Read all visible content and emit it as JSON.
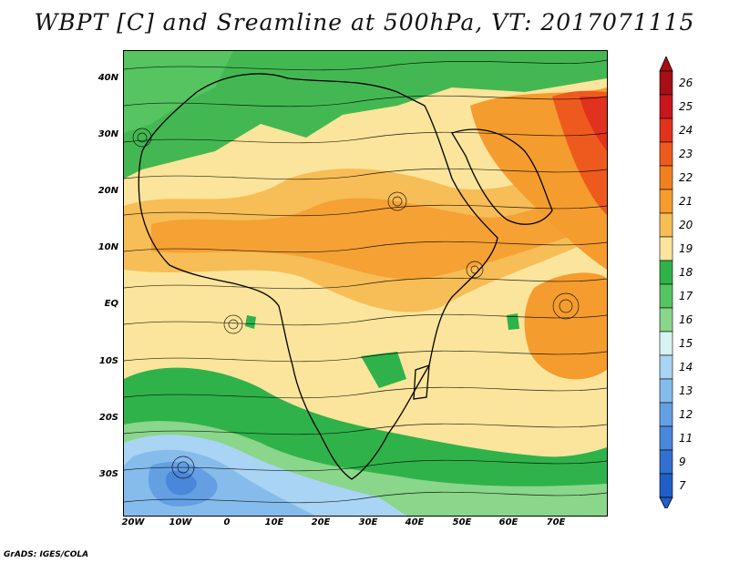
{
  "title": "WBPT [C] and Sreamline at 500hPa, VT: 2017071115",
  "footer": "GrADS: IGES/COLA",
  "map": {
    "lat_labels": [
      "40N",
      "30N",
      "20N",
      "10N",
      "EQ",
      "10S",
      "20S",
      "30S"
    ],
    "lon_labels": [
      "20W",
      "10W",
      "0",
      "10E",
      "20E",
      "30E",
      "40E",
      "50E",
      "60E",
      "70E"
    ]
  },
  "colorbar": {
    "labels": [
      "26",
      "25",
      "24",
      "23",
      "22",
      "21",
      "20",
      "19",
      "18",
      "17",
      "16",
      "15",
      "14",
      "13",
      "12",
      "11",
      "9",
      "7"
    ],
    "colors": {
      "26": "#a50f15",
      "25": "#c8161d",
      "24": "#e0321e",
      "23": "#ee5a1e",
      "22": "#f27f1f",
      "21": "#f59c2e",
      "20": "#f7bd56",
      "19": "#fbe49b",
      "18": "#2fb24a",
      "17": "#55c461",
      "16": "#8ad68a",
      "15": "#d8f3f0",
      "14": "#a9d4f3",
      "13": "#86bcec",
      "12": "#649fe3",
      "11": "#4a86d9",
      "9": "#3170cf",
      "7": "#1f5fc6"
    }
  }
}
